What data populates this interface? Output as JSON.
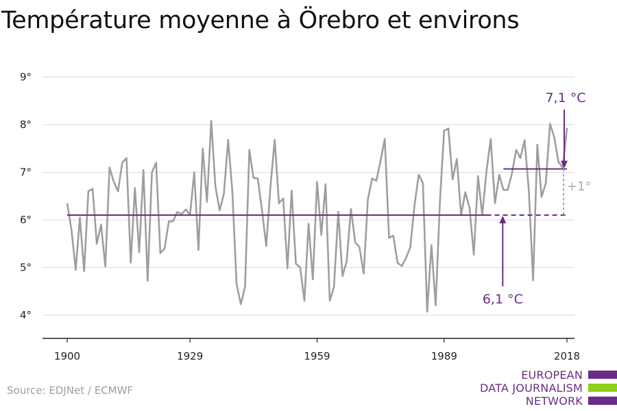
{
  "title": "Température moyenne à Örebro et environs",
  "source": "Source: EDJNet / ECMWF",
  "logo": {
    "lines": [
      "EUROPEAN",
      "DATA JOURNALISM",
      "NETWORK"
    ],
    "colors": [
      "#6a2c86",
      "#8ed11a",
      "#6a2c86"
    ]
  },
  "colors": {
    "series": "#9e9e9e",
    "accent": "#6a2c86",
    "grid": "#d9d9d9",
    "annotation_gray": "#aaaaaa"
  },
  "chart_data": {
    "type": "line",
    "title": "Température moyenne à Örebro et environs",
    "xlabel": "",
    "ylabel": "",
    "xlim": [
      1900,
      2018
    ],
    "ylim": [
      3.5,
      9.5
    ],
    "x_ticks": [
      1900,
      1929,
      1959,
      1989,
      2018
    ],
    "y_ticks": [
      4,
      5,
      6,
      7,
      8,
      9
    ],
    "y_tick_labels": [
      "4°",
      "5°",
      "6°",
      "7°",
      "8°",
      "9°"
    ],
    "grid": true,
    "series": [
      {
        "x_start": 1900,
        "values": [
          6.35,
          5.8,
          4.95,
          6.05,
          4.92,
          6.6,
          6.65,
          5.5,
          5.9,
          5.02,
          7.1,
          6.8,
          6.6,
          7.2,
          7.3,
          5.1,
          6.67,
          5.32,
          7.05,
          4.72,
          7.0,
          7.2,
          5.3,
          5.4,
          5.97,
          5.97,
          6.17,
          6.12,
          6.22,
          6.1,
          7.0,
          5.37,
          7.5,
          6.38,
          8.08,
          6.7,
          6.2,
          6.55,
          7.68,
          6.6,
          4.65,
          4.23,
          4.6,
          7.47,
          6.88,
          6.87,
          6.2,
          5.45,
          6.7,
          7.68,
          6.35,
          6.45,
          4.98,
          6.62,
          5.08,
          5.0,
          4.3,
          5.92,
          4.75,
          6.8,
          5.68,
          6.75,
          4.3,
          4.6,
          6.17,
          4.82,
          5.13,
          6.23,
          5.53,
          5.43,
          4.87,
          6.43,
          6.87,
          6.82,
          7.25,
          7.7,
          5.62,
          5.67,
          5.1,
          5.03,
          5.2,
          5.42,
          6.3,
          6.95,
          6.77,
          4.07,
          5.47,
          4.2,
          6.38,
          7.87,
          7.92,
          6.85,
          7.28,
          6.1,
          6.58,
          6.25,
          5.27,
          6.92,
          6.1,
          7.02,
          7.7,
          6.35,
          6.95,
          6.63,
          6.63,
          6.97,
          7.47,
          7.3,
          7.67,
          6.62,
          4.73,
          7.58,
          6.48,
          6.77,
          8.02,
          7.73,
          7.22,
          7.1,
          7.93
        ]
      }
    ],
    "reference_lines": [
      {
        "label": "6,1 °C",
        "value": 6.1,
        "x_start": 1900,
        "x_end": 1999
      },
      {
        "label": "7,1 °C",
        "value": 7.07,
        "x_start": 2003,
        "x_end": 2018
      }
    ],
    "annotations": [
      {
        "text": "7,1 °C",
        "points_to_x": 2018,
        "points_to_y": 7.07
      },
      {
        "text": "6,1 °C",
        "points_to_x": 2003,
        "points_to_y": 6.1
      },
      {
        "text": "+1°",
        "between": [
          6.1,
          7.07
        ]
      }
    ]
  }
}
